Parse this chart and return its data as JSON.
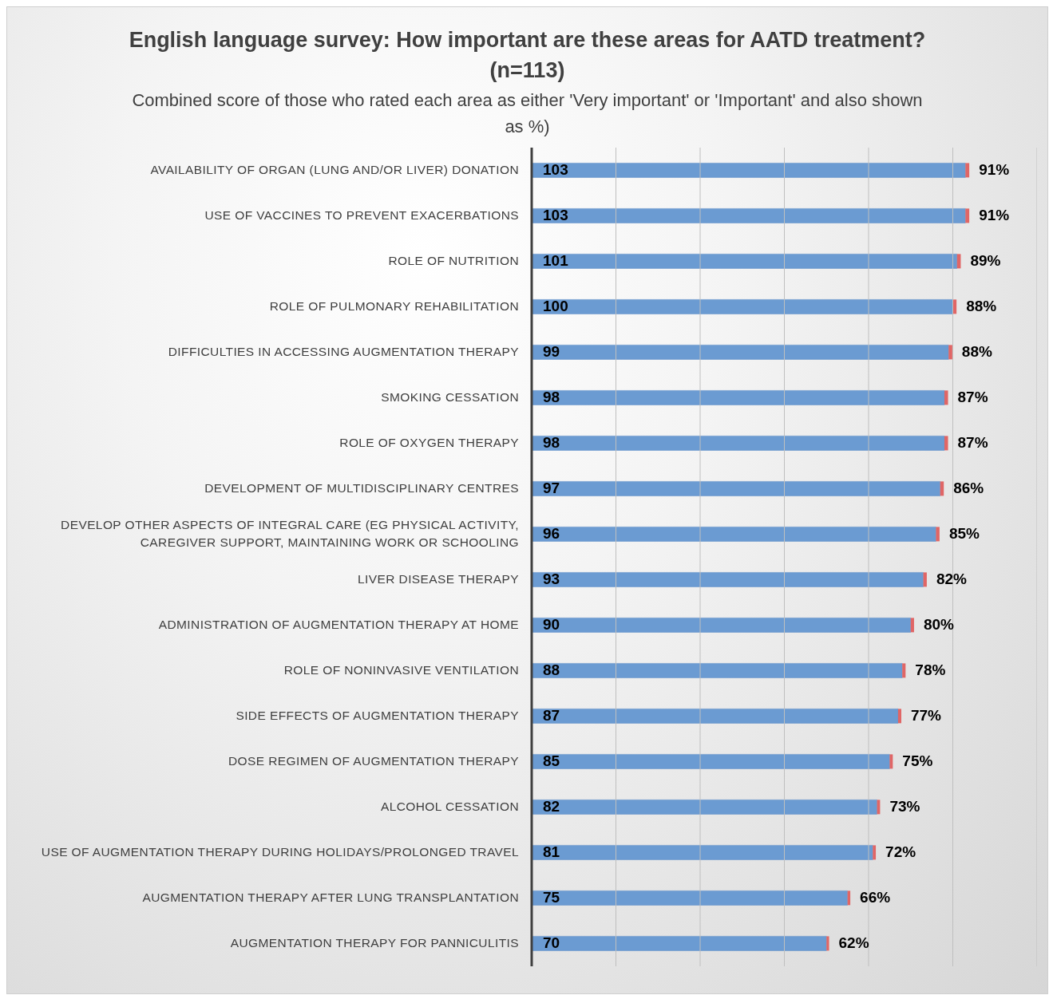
{
  "chart_data": {
    "type": "bar",
    "orientation": "horizontal",
    "stacked": true,
    "title": "English language survey: How important are these areas for AATD treatment? (n=113)",
    "subtitle": "Combined score of those who rated each area as either 'Very important' or 'Important' and also shown as %)",
    "categories": [
      "AVAILABILITY OF ORGAN (LUNG AND/OR LIVER) DONATION",
      "USE OF VACCINES TO PREVENT EXACERBATIONS",
      "ROLE OF NUTRITION",
      "ROLE OF PULMONARY REHABILITATION",
      "DIFFICULTIES IN ACCESSING AUGMENTATION THERAPY",
      "SMOKING CESSATION",
      "ROLE OF OXYGEN THERAPY",
      "DEVELOPMENT OF MULTIDISCIPLINARY CENTRES",
      "DEVELOP OTHER ASPECTS OF INTEGRAL CARE (EG PHYSICAL ACTIVITY, CAREGIVER SUPPORT, MAINTAINING WORK OR SCHOOLING",
      "LIVER DISEASE THERAPY",
      "ADMINISTRATION OF AUGMENTATION THERAPY AT HOME",
      "ROLE OF NONINVASIVE VENTILATION",
      "SIDE EFFECTS OF AUGMENTATION THERAPY",
      "DOSE REGIMEN OF AUGMENTATION THERAPY",
      "ALCOHOL CESSATION",
      "USE OF AUGMENTATION THERAPY DURING HOLIDAYS/PROLONGED TRAVEL",
      "AUGMENTATION THERAPY AFTER LUNG TRANSPLANTATION",
      "AUGMENTATION THERAPY FOR PANNICULITIS"
    ],
    "series": [
      {
        "color": "#6b9bd2",
        "values": [
          103,
          103,
          101,
          100,
          99,
          98,
          98,
          97,
          96,
          93,
          90,
          88,
          87,
          85,
          82,
          81,
          75,
          70
        ],
        "value_labels": [
          "103",
          "103",
          "101",
          "100",
          "99",
          "98",
          "98",
          "97",
          "96",
          "93",
          "90",
          "88",
          "87",
          "85",
          "82",
          "81",
          "75",
          "70"
        ]
      },
      {
        "color": "#e06666",
        "values": [
          0.91,
          0.91,
          0.89,
          0.88,
          0.88,
          0.87,
          0.87,
          0.86,
          0.85,
          0.82,
          0.8,
          0.78,
          0.77,
          0.75,
          0.73,
          0.72,
          0.66,
          0.62
        ],
        "value_labels": [
          "91%",
          "91%",
          "89%",
          "88%",
          "88%",
          "87%",
          "87%",
          "86%",
          "85%",
          "82%",
          "80%",
          "78%",
          "77%",
          "75%",
          "73%",
          "72%",
          "66%",
          "62%"
        ]
      }
    ],
    "xlim": [
      0,
      120
    ],
    "xticks": [
      {
        "value": 0,
        "label": null
      },
      {
        "value": 20,
        "label": null
      },
      {
        "value": 40,
        "label": null
      },
      {
        "value": 60,
        "label": null
      },
      {
        "value": 80,
        "label": null
      },
      {
        "value": 100,
        "label": null
      },
      {
        "value": 120,
        "label": null
      }
    ],
    "grid": "x",
    "tick_labels": "y",
    "legend": false
  }
}
